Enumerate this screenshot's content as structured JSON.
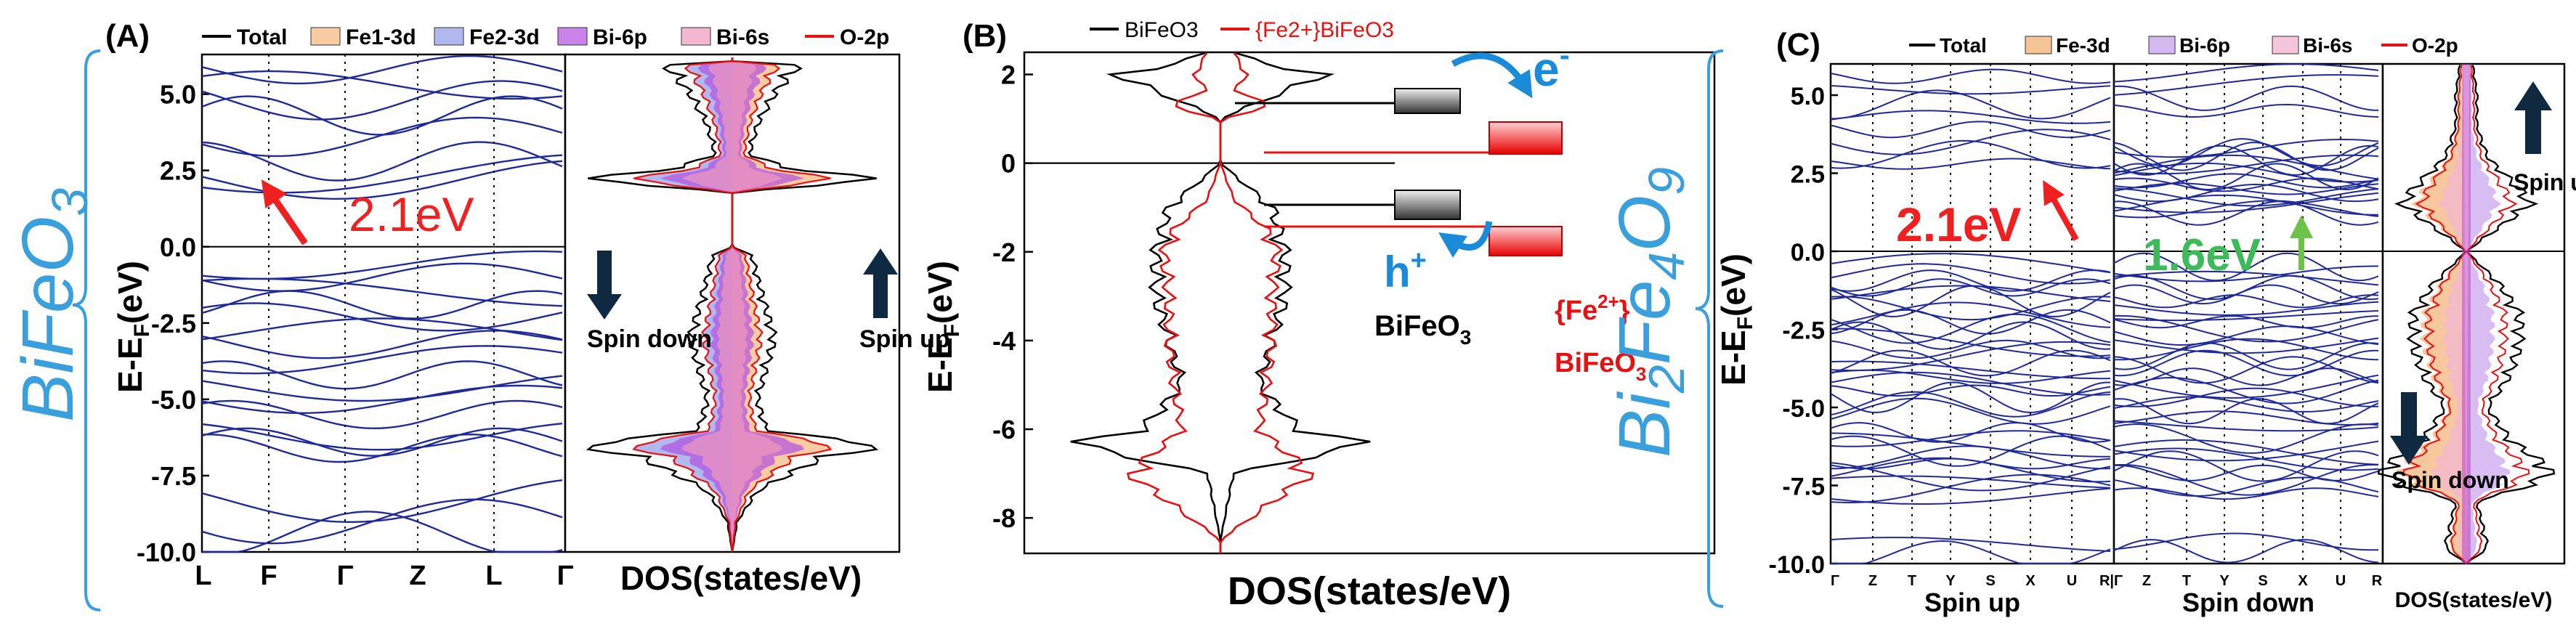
{
  "chart_data": [
    {
      "id": "A",
      "type": "line",
      "panel_label": "(A)",
      "compound_label": "BiFeO",
      "compound_sub": "3",
      "ylabel_main": "E-E",
      "ylabel_sub": "F",
      "ylabel_unit": "(eV)",
      "ylim": [
        -10.0,
        6.3
      ],
      "yticks": [
        "5.0",
        "2.5",
        "0.0",
        "-2.5",
        "-5.0",
        "-7.5",
        "-10.0"
      ],
      "yvals": [
        5.0,
        2.5,
        0.0,
        -2.5,
        -5.0,
        -7.5,
        -10.0
      ],
      "kpoints": [
        "L",
        "F",
        "Γ",
        "Z",
        "L",
        "Γ"
      ],
      "legend": [
        "Total",
        "Fe1-3d",
        "Fe2-3d",
        "Bi-6p",
        "Bi-6s",
        "O-2p"
      ],
      "legend_colors": [
        "#000000",
        "#f4b67c",
        "#8f9ae6",
        "#b44fe0",
        "#ef98bf",
        "#e81010"
      ],
      "bandgap": "2.1eV",
      "dos_xlabel": "DOS(states/eV)",
      "spin_left": "Spin down",
      "spin_right": "Spin up",
      "series": [
        {
          "name": "Total",
          "energy": [
            -10.0,
            -9.0,
            -8.0,
            -7.0,
            -6.5,
            -6.3,
            -6.0,
            -5.0,
            -4.0,
            -3.0,
            -2.0,
            -1.0,
            -0.3,
            0.0,
            1.8,
            2.2,
            2.5,
            3.0,
            4.0,
            5.0,
            6.0
          ],
          "dos": [
            0.0,
            0.3,
            1.5,
            5.0,
            9.0,
            6.0,
            2.0,
            1.5,
            2.0,
            2.5,
            2.0,
            1.5,
            1.2,
            0.0,
            0.0,
            9.5,
            4.0,
            1.0,
            1.5,
            2.5,
            4.0
          ]
        }
      ]
    },
    {
      "id": "B",
      "type": "line",
      "panel_label": "(B)",
      "ylabel_main": "E-E",
      "ylabel_sub": "F",
      "ylabel_unit": "(eV)",
      "ylim": [
        -8.8,
        2.5
      ],
      "yticks": [
        "2",
        "0",
        "-2",
        "-4",
        "-6",
        "-8"
      ],
      "yvals": [
        2,
        0,
        -2,
        -4,
        -6,
        -8
      ],
      "xlabel": "DOS(states/eV)",
      "legend": [
        "BiFeO3",
        "{Fe2+}BiFeO3"
      ],
      "legend_colors": [
        "#000000",
        "#e81010"
      ],
      "label_pristine": "BiFeO",
      "label_pristine_sub": "3",
      "label_doped_top": "{Fe",
      "label_doped_sup": "2+",
      "label_doped_close": "}",
      "label_doped_bottom": "BiFeO",
      "label_doped_bottom_sub": "3",
      "electron": "e",
      "electron_sup": "-",
      "hole": "h",
      "hole_sup": "+",
      "series": [
        {
          "name": "BiFeO3",
          "energy": [
            -8.5,
            -7.0,
            -6.5,
            -6.3,
            -6.0,
            -5.0,
            -4.0,
            -3.0,
            -2.0,
            -1.0,
            0.0,
            1.0,
            2.0,
            2.2,
            2.5
          ],
          "dos": [
            0.0,
            0.5,
            4.5,
            5.5,
            3.0,
            1.5,
            2.0,
            2.5,
            2.5,
            2.0,
            0.0,
            0.0,
            4.0,
            2.0,
            0.5
          ]
        },
        {
          "name": "{Fe2+}BiFeO3",
          "energy": [
            -8.5,
            -7.0,
            -6.0,
            -5.0,
            -4.0,
            -3.0,
            -2.0,
            -1.5,
            -0.8,
            0.0,
            1.0,
            1.3,
            1.6,
            2.0,
            2.5
          ],
          "dos": [
            0.0,
            3.5,
            1.5,
            1.8,
            2.0,
            2.0,
            2.2,
            1.8,
            0.5,
            0.0,
            0.0,
            2.2,
            0.5,
            1.0,
            0.5
          ]
        }
      ]
    },
    {
      "id": "C",
      "type": "line",
      "panel_label": "(C)",
      "compound_label": "Bi2Fe4O9",
      "compound_parts": [
        "Bi",
        "2",
        "Fe",
        "4",
        "O",
        "9"
      ],
      "ylabel_main": "E-E",
      "ylabel_sub": "F",
      "ylabel_unit": "(eV)",
      "ylim": [
        -10.0,
        6.0
      ],
      "yticks": [
        "5.0",
        "2.5",
        "0.0",
        "-2.5",
        "-5.0",
        "-7.5",
        "-10.0"
      ],
      "yvals": [
        5.0,
        2.5,
        0.0,
        -2.5,
        -5.0,
        -7.5,
        -10.0
      ],
      "kpoints_up": [
        "Γ",
        "Z",
        "T",
        "Y",
        "S",
        "X",
        "U",
        "R|Γ"
      ],
      "kpoints_down": [
        "Z",
        "T",
        "Y",
        "S",
        "X",
        "U",
        "R"
      ],
      "legend": [
        "Total",
        "Fe-3d",
        "Bi-6p",
        "Bi-6s",
        "O-2p"
      ],
      "legend_colors": [
        "#000000",
        "#f4b67c",
        "#c9a7ee",
        "#f2b8d2",
        "#e81010"
      ],
      "bandgap_up": "2.1eV",
      "bandgap_down": "1.6eV",
      "xlabel_up": "Spin up",
      "xlabel_down": "Spin down",
      "dos_xlabel": "DOS(states/eV)",
      "spin_up": "Spin up",
      "spin_down": "Spin down",
      "series": [
        {
          "name": "Total",
          "energy": [
            -10.0,
            -9.5,
            -8.0,
            -7.5,
            -7.0,
            -6.0,
            -5.0,
            -4.0,
            -3.0,
            -2.0,
            -1.0,
            0.0,
            1.5,
            2.0,
            3.0,
            4.0,
            5.0,
            6.0
          ],
          "dos": [
            0.0,
            1.0,
            0.5,
            3.0,
            4.0,
            2.0,
            1.0,
            2.0,
            2.5,
            2.5,
            1.5,
            0.0,
            3.0,
            2.5,
            1.0,
            0.5,
            0.5,
            0.3
          ]
        }
      ]
    }
  ]
}
